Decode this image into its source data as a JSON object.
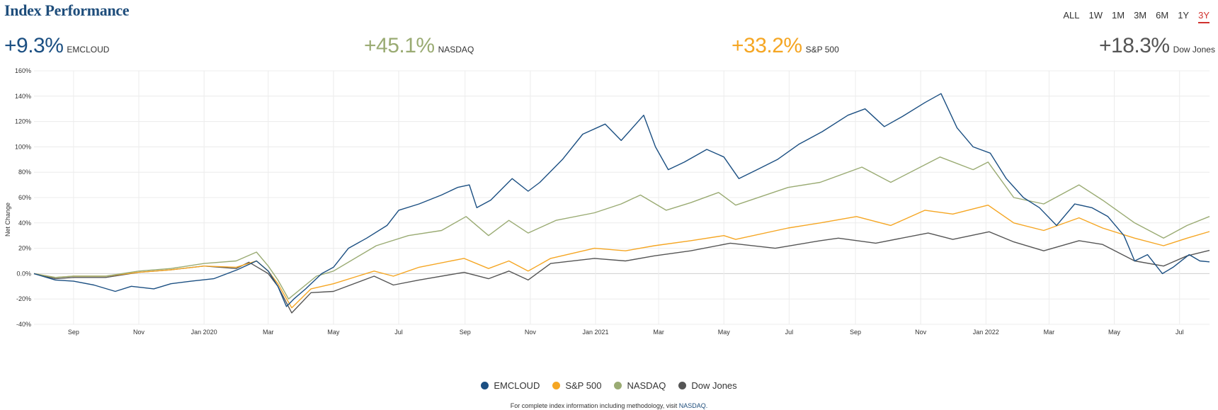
{
  "header": {
    "title": "Index Performance",
    "ranges": [
      "ALL",
      "1W",
      "1M",
      "3M",
      "6M",
      "1Y",
      "3Y"
    ],
    "active_range": "3Y"
  },
  "stats": [
    {
      "value": "+9.3%",
      "label": "EMCLOUD",
      "color": "#1b4f82"
    },
    {
      "value": "+45.1%",
      "label": "NASDAQ",
      "color": "#9aab73"
    },
    {
      "value": "+33.2%",
      "label": "S&P 500",
      "color": "#f5a623"
    },
    {
      "value": "+18.3%",
      "label": "Dow Jones",
      "color": "#555555"
    }
  ],
  "chart_data": {
    "type": "line",
    "ylabel": "Net Change",
    "ylim": [
      -40,
      160
    ],
    "yticks": [
      -40,
      -20,
      0,
      20,
      40,
      60,
      80,
      100,
      120,
      140,
      160
    ],
    "ytick_labels": [
      "-40%",
      "-20%",
      "0.0%",
      "20%",
      "40%",
      "60%",
      "80%",
      "100%",
      "120%",
      "140%",
      "160%"
    ],
    "xlim": [
      "2019-07-26",
      "2022-07-29"
    ],
    "xticks": [
      "2019-09-01",
      "2019-11-01",
      "2020-01-01",
      "2020-03-01",
      "2020-05-01",
      "2020-07-01",
      "2020-09-01",
      "2020-11-01",
      "2021-01-01",
      "2021-03-01",
      "2021-05-01",
      "2021-07-01",
      "2021-09-01",
      "2021-11-01",
      "2022-01-01",
      "2022-03-01",
      "2022-05-01",
      "2022-07-01"
    ],
    "xtick_labels": [
      "Sep",
      "Nov",
      "Jan 2020",
      "Mar",
      "May",
      "Jul",
      "Sep",
      "Nov",
      "Jan 2021",
      "Mar",
      "May",
      "Jul",
      "Sep",
      "Nov",
      "Jan 2022",
      "Mar",
      "May",
      "Jul"
    ],
    "grid": true,
    "legend_position": "bottom",
    "series": [
      {
        "name": "EMCLOUD",
        "color": "#1b4f82",
        "points": [
          [
            "2019-07-26",
            0
          ],
          [
            "2019-08-15",
            -5
          ],
          [
            "2019-09-01",
            -6
          ],
          [
            "2019-09-20",
            -9
          ],
          [
            "2019-10-10",
            -14
          ],
          [
            "2019-10-25",
            -10
          ],
          [
            "2019-11-15",
            -12
          ],
          [
            "2019-12-01",
            -8
          ],
          [
            "2019-12-20",
            -6
          ],
          [
            "2020-01-10",
            -4
          ],
          [
            "2020-02-01",
            3
          ],
          [
            "2020-02-19",
            10
          ],
          [
            "2020-03-01",
            2
          ],
          [
            "2020-03-10",
            -10
          ],
          [
            "2020-03-18",
            -26
          ],
          [
            "2020-03-25",
            -20
          ],
          [
            "2020-04-05",
            -12
          ],
          [
            "2020-04-20",
            0
          ],
          [
            "2020-05-01",
            5
          ],
          [
            "2020-05-15",
            20
          ],
          [
            "2020-06-01",
            28
          ],
          [
            "2020-06-20",
            38
          ],
          [
            "2020-07-01",
            50
          ],
          [
            "2020-07-20",
            55
          ],
          [
            "2020-08-10",
            62
          ],
          [
            "2020-08-25",
            68
          ],
          [
            "2020-09-05",
            70
          ],
          [
            "2020-09-12",
            52
          ],
          [
            "2020-09-25",
            58
          ],
          [
            "2020-10-15",
            75
          ],
          [
            "2020-10-30",
            65
          ],
          [
            "2020-11-10",
            72
          ],
          [
            "2020-12-01",
            90
          ],
          [
            "2020-12-20",
            110
          ],
          [
            "2021-01-10",
            118
          ],
          [
            "2021-01-25",
            105
          ],
          [
            "2021-02-15",
            125
          ],
          [
            "2021-02-26",
            100
          ],
          [
            "2021-03-10",
            82
          ],
          [
            "2021-03-25",
            88
          ],
          [
            "2021-04-15",
            98
          ],
          [
            "2021-05-01",
            92
          ],
          [
            "2021-05-15",
            75
          ],
          [
            "2021-06-01",
            82
          ],
          [
            "2021-06-20",
            90
          ],
          [
            "2021-07-10",
            102
          ],
          [
            "2021-08-01",
            112
          ],
          [
            "2021-08-25",
            125
          ],
          [
            "2021-09-10",
            130
          ],
          [
            "2021-09-28",
            116
          ],
          [
            "2021-10-15",
            124
          ],
          [
            "2021-11-05",
            135
          ],
          [
            "2021-11-20",
            142
          ],
          [
            "2021-12-05",
            115
          ],
          [
            "2021-12-20",
            100
          ],
          [
            "2022-01-05",
            95
          ],
          [
            "2022-01-20",
            75
          ],
          [
            "2022-02-05",
            60
          ],
          [
            "2022-02-20",
            52
          ],
          [
            "2022-03-08",
            38
          ],
          [
            "2022-03-25",
            55
          ],
          [
            "2022-04-10",
            52
          ],
          [
            "2022-04-25",
            45
          ],
          [
            "2022-05-10",
            30
          ],
          [
            "2022-05-20",
            10
          ],
          [
            "2022-06-01",
            15
          ],
          [
            "2022-06-15",
            0
          ],
          [
            "2022-06-25",
            5
          ],
          [
            "2022-07-10",
            15
          ],
          [
            "2022-07-20",
            10
          ],
          [
            "2022-07-29",
            9.3
          ]
        ]
      },
      {
        "name": "S&P 500",
        "color": "#f5a623",
        "points": [
          [
            "2019-07-26",
            0
          ],
          [
            "2019-08-15",
            -3
          ],
          [
            "2019-09-01",
            -2
          ],
          [
            "2019-10-01",
            -2
          ],
          [
            "2019-11-01",
            1
          ],
          [
            "2019-12-01",
            3
          ],
          [
            "2020-01-01",
            6
          ],
          [
            "2020-01-31",
            5
          ],
          [
            "2020-02-19",
            10
          ],
          [
            "2020-03-01",
            2
          ],
          [
            "2020-03-10",
            -8
          ],
          [
            "2020-03-23",
            -27
          ],
          [
            "2020-04-10",
            -12
          ],
          [
            "2020-05-01",
            -8
          ],
          [
            "2020-06-08",
            2
          ],
          [
            "2020-06-26",
            -2
          ],
          [
            "2020-07-20",
            5
          ],
          [
            "2020-08-31",
            12
          ],
          [
            "2020-09-23",
            4
          ],
          [
            "2020-10-12",
            10
          ],
          [
            "2020-10-30",
            2
          ],
          [
            "2020-11-20",
            12
          ],
          [
            "2020-12-31",
            20
          ],
          [
            "2021-01-29",
            18
          ],
          [
            "2021-02-25",
            22
          ],
          [
            "2021-03-31",
            26
          ],
          [
            "2021-05-01",
            30
          ],
          [
            "2021-05-12",
            27
          ],
          [
            "2021-06-30",
            36
          ],
          [
            "2021-07-30",
            40
          ],
          [
            "2021-09-02",
            45
          ],
          [
            "2021-10-04",
            38
          ],
          [
            "2021-11-05",
            50
          ],
          [
            "2021-12-01",
            47
          ],
          [
            "2022-01-03",
            54
          ],
          [
            "2022-01-27",
            40
          ],
          [
            "2022-02-24",
            34
          ],
          [
            "2022-03-29",
            44
          ],
          [
            "2022-04-20",
            36
          ],
          [
            "2022-05-20",
            28
          ],
          [
            "2022-06-16",
            22
          ],
          [
            "2022-07-08",
            28
          ],
          [
            "2022-07-29",
            33.2
          ]
        ]
      },
      {
        "name": "NASDAQ",
        "color": "#9aab73",
        "points": [
          [
            "2019-07-26",
            0
          ],
          [
            "2019-08-15",
            -3
          ],
          [
            "2019-09-01",
            -2
          ],
          [
            "2019-10-01",
            -2
          ],
          [
            "2019-11-01",
            2
          ],
          [
            "2019-12-01",
            4
          ],
          [
            "2020-01-01",
            8
          ],
          [
            "2020-01-31",
            10
          ],
          [
            "2020-02-19",
            17
          ],
          [
            "2020-03-01",
            6
          ],
          [
            "2020-03-10",
            -5
          ],
          [
            "2020-03-20",
            -20
          ],
          [
            "2020-04-15",
            -2
          ],
          [
            "2020-05-01",
            2
          ],
          [
            "2020-06-10",
            22
          ],
          [
            "2020-07-10",
            30
          ],
          [
            "2020-08-10",
            34
          ],
          [
            "2020-09-02",
            45
          ],
          [
            "2020-09-23",
            30
          ],
          [
            "2020-10-12",
            42
          ],
          [
            "2020-10-30",
            32
          ],
          [
            "2020-11-25",
            42
          ],
          [
            "2020-12-31",
            48
          ],
          [
            "2021-01-25",
            55
          ],
          [
            "2021-02-12",
            62
          ],
          [
            "2021-03-08",
            50
          ],
          [
            "2021-03-31",
            56
          ],
          [
            "2021-04-26",
            64
          ],
          [
            "2021-05-12",
            54
          ],
          [
            "2021-06-30",
            68
          ],
          [
            "2021-07-30",
            72
          ],
          [
            "2021-09-07",
            84
          ],
          [
            "2021-10-04",
            72
          ],
          [
            "2021-11-19",
            92
          ],
          [
            "2021-12-20",
            82
          ],
          [
            "2022-01-03",
            88
          ],
          [
            "2022-01-27",
            60
          ],
          [
            "2022-02-24",
            55
          ],
          [
            "2022-03-29",
            70
          ],
          [
            "2022-04-20",
            58
          ],
          [
            "2022-05-20",
            40
          ],
          [
            "2022-06-16",
            28
          ],
          [
            "2022-07-08",
            38
          ],
          [
            "2022-07-29",
            45.1
          ]
        ]
      },
      {
        "name": "Dow Jones",
        "color": "#555555",
        "points": [
          [
            "2019-07-26",
            0
          ],
          [
            "2019-08-15",
            -4
          ],
          [
            "2019-09-01",
            -3
          ],
          [
            "2019-10-01",
            -3
          ],
          [
            "2019-11-01",
            1
          ],
          [
            "2019-12-01",
            3
          ],
          [
            "2020-01-01",
            6
          ],
          [
            "2020-01-31",
            4
          ],
          [
            "2020-02-12",
            9
          ],
          [
            "2020-03-01",
            0
          ],
          [
            "2020-03-10",
            -10
          ],
          [
            "2020-03-23",
            -31
          ],
          [
            "2020-04-10",
            -15
          ],
          [
            "2020-05-01",
            -14
          ],
          [
            "2020-06-08",
            -2
          ],
          [
            "2020-06-26",
            -9
          ],
          [
            "2020-07-20",
            -5
          ],
          [
            "2020-08-31",
            1
          ],
          [
            "2020-09-23",
            -4
          ],
          [
            "2020-10-12",
            2
          ],
          [
            "2020-10-30",
            -5
          ],
          [
            "2020-11-20",
            8
          ],
          [
            "2020-12-31",
            12
          ],
          [
            "2021-01-29",
            10
          ],
          [
            "2021-02-25",
            14
          ],
          [
            "2021-03-31",
            18
          ],
          [
            "2021-05-07",
            24
          ],
          [
            "2021-06-18",
            20
          ],
          [
            "2021-07-30",
            26
          ],
          [
            "2021-08-16",
            28
          ],
          [
            "2021-09-20",
            24
          ],
          [
            "2021-11-08",
            32
          ],
          [
            "2021-12-01",
            27
          ],
          [
            "2022-01-04",
            33
          ],
          [
            "2022-01-27",
            25
          ],
          [
            "2022-02-24",
            18
          ],
          [
            "2022-03-29",
            26
          ],
          [
            "2022-04-20",
            23
          ],
          [
            "2022-05-20",
            10
          ],
          [
            "2022-06-16",
            6
          ],
          [
            "2022-07-08",
            14
          ],
          [
            "2022-07-29",
            18.3
          ]
        ]
      }
    ]
  },
  "legend": [
    {
      "label": "EMCLOUD",
      "color": "#1b4f82"
    },
    {
      "label": "S&P 500",
      "color": "#f5a623"
    },
    {
      "label": "NASDAQ",
      "color": "#9aab73"
    },
    {
      "label": "Dow Jones",
      "color": "#555555"
    }
  ],
  "footnote": {
    "text": "For complete index information including methodology, visit ",
    "link": "NASDAQ.",
    "link_color": "#1e4d7b"
  }
}
